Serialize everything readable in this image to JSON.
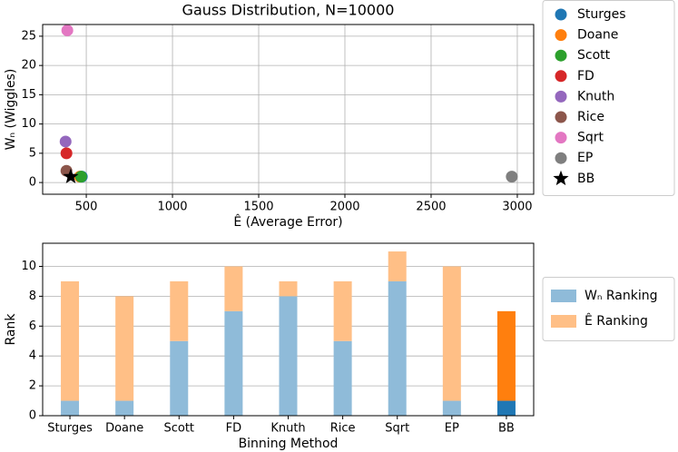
{
  "chart_data": [
    {
      "type": "scatter",
      "title": "Gauss Distribution, N=10000",
      "x_label": "Ê (Average Error)",
      "y_label": "Wₙ (Wiggles)",
      "xlim": [
        247,
        3095
      ],
      "ylim": [
        -2,
        27
      ],
      "xticks": [
        500,
        1000,
        1500,
        2000,
        2500,
        3000
      ],
      "yticks": [
        0,
        5,
        10,
        15,
        20,
        25
      ],
      "grid": true,
      "legend": "outside-right",
      "series": [
        {
          "name": "Sturges",
          "color": "#1f77b4",
          "marker": "circle",
          "x": [
            474
          ],
          "values": [
            1
          ]
        },
        {
          "name": "Doane",
          "color": "#ff7f0e",
          "marker": "circle",
          "x": [
            463
          ],
          "values": [
            1
          ]
        },
        {
          "name": "Scott",
          "color": "#2ca02c",
          "marker": "circle",
          "x": [
            470
          ],
          "values": [
            1
          ]
        },
        {
          "name": "FD",
          "color": "#d62728",
          "marker": "circle",
          "x": [
            385
          ],
          "values": [
            5
          ]
        },
        {
          "name": "Knuth",
          "color": "#9467bd",
          "marker": "circle",
          "x": [
            380
          ],
          "values": [
            7
          ]
        },
        {
          "name": "Rice",
          "color": "#8c564b",
          "marker": "circle",
          "x": [
            385
          ],
          "values": [
            2
          ]
        },
        {
          "name": "Sqrt",
          "color": "#e377c2",
          "marker": "circle",
          "x": [
            390
          ],
          "values": [
            26
          ]
        },
        {
          "name": "EP",
          "color": "#7f7f7f",
          "marker": "circle",
          "x": [
            2968
          ],
          "values": [
            1
          ]
        },
        {
          "name": "BB",
          "color": "#000000",
          "marker": "star",
          "x": [
            410
          ],
          "values": [
            1
          ]
        }
      ]
    },
    {
      "type": "bar",
      "stacked": true,
      "x_label": "Binning Method",
      "y_label": "Rank",
      "categories": [
        "Sturges",
        "Doane",
        "Scott",
        "FD",
        "Knuth",
        "Rice",
        "Sqrt",
        "EP",
        "BB"
      ],
      "ylim": [
        0,
        11.55
      ],
      "yticks": [
        0,
        2,
        4,
        6,
        8,
        10
      ],
      "grid": true,
      "legend": "outside-right",
      "series": [
        {
          "name": "Wₙ Ranking",
          "color": "#8fbbd9",
          "values": [
            1,
            1,
            5,
            7,
            8,
            5,
            9,
            1,
            1
          ],
          "colors": [
            "#8fbbd9",
            "#8fbbd9",
            "#8fbbd9",
            "#8fbbd9",
            "#8fbbd9",
            "#8fbbd9",
            "#8fbbd9",
            "#8fbbd9",
            "#1f77b4"
          ]
        },
        {
          "name": "Ê Ranking",
          "color": "#ffbf86",
          "values": [
            8,
            7,
            4,
            3,
            1,
            4,
            2,
            9,
            6
          ],
          "colors": [
            "#ffbf86",
            "#ffbf86",
            "#ffbf86",
            "#ffbf86",
            "#ffbf86",
            "#ffbf86",
            "#ffbf86",
            "#ffbf86",
            "#ff7f0e"
          ]
        }
      ]
    }
  ]
}
